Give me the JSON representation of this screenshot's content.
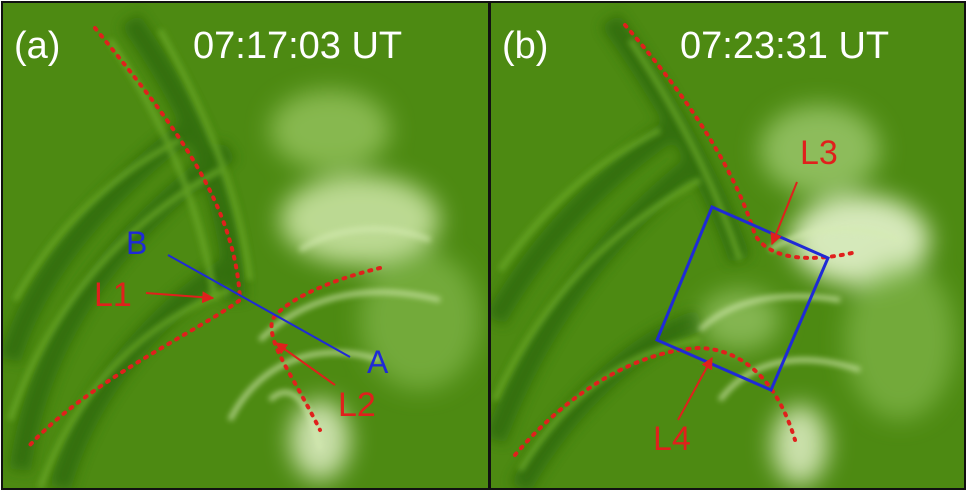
{
  "panels": [
    {
      "label": "(a)",
      "time": "07:17:03 UT",
      "annotations": {
        "b": "B",
        "a": "A",
        "l1": "L1",
        "l2": "L2"
      }
    },
    {
      "label": "(b)",
      "time": "07:23:31 UT",
      "annotations": {
        "l3": "L3",
        "l4": "L4"
      }
    }
  ],
  "colors": {
    "background_base": "#4d8a12",
    "loop_dark": "#2f6a08",
    "loop_bright": "#cfe8a8",
    "marker_red": "#e0201c",
    "marker_blue": "#1f2ad6",
    "text_white": "#ffffff",
    "frame": "#111111"
  }
}
